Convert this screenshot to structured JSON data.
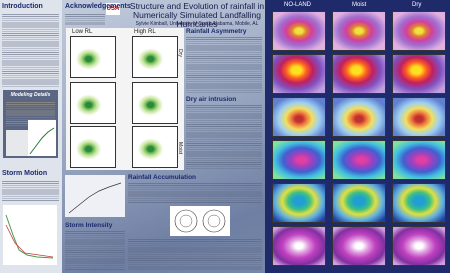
{
  "header": {
    "logo": "USA",
    "title": "Structure and Evolution of rainfall in Numerically Simulated Landfalling Hurricanes",
    "author": "Sylvie Kimball, University of South Alabama, Mobile, AL"
  },
  "sections": {
    "introduction": "Introduction",
    "modeling_details": "Modeling Details",
    "storm_motion": "Storm Motion",
    "acknowledgements": "Acknowledgements",
    "rainfall_asymmetry": "Rainfall Asymmetry",
    "dry_air_intrusion": "Dry air intrusion",
    "rainfall_accumulation": "Rainfall Accumulation",
    "storm_intensity": "Storm Intensity"
  },
  "center_panels": {
    "col_labels": [
      "Low RL",
      "High RL"
    ],
    "row_labels": [
      "Dry",
      "Moist"
    ]
  },
  "right_panel": {
    "col_labels": [
      "NO-LAND",
      "Moist",
      "Dry"
    ]
  }
}
